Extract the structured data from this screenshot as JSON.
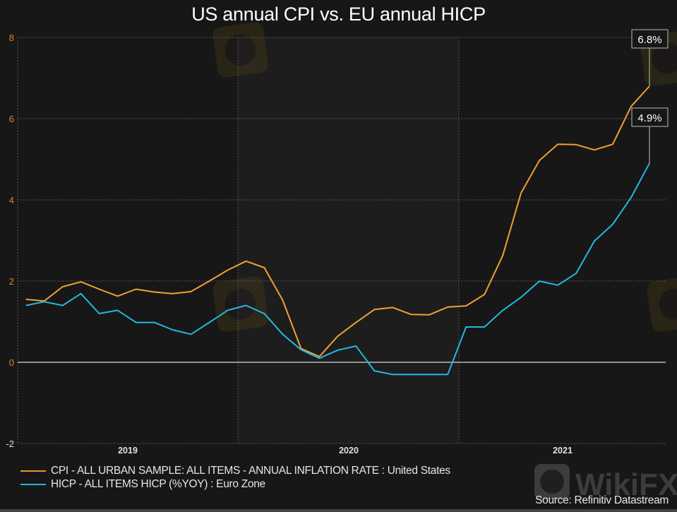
{
  "chart_data": {
    "type": "line",
    "title": "US annual CPI vs. EU annual HICP",
    "xlabel": "",
    "ylabel": "",
    "ylim": [
      -2,
      8
    ],
    "yticks": [
      "8",
      "6",
      "4",
      "2",
      "0",
      "-2"
    ],
    "ytick_values": [
      8,
      6,
      4,
      2,
      0,
      -2
    ],
    "xticks": [
      "2019",
      "2020",
      "2021"
    ],
    "grid": true,
    "legend_position": "bottom-left",
    "points_per_series": 35,
    "series": [
      {
        "name": "CPI - ALL URBAN SAMPLE: ALL ITEMS - ANNUAL INFLATION RATE : United States",
        "color": "#f0a030",
        "values": [
          1.55,
          1.51,
          1.86,
          1.98,
          1.8,
          1.63,
          1.8,
          1.73,
          1.69,
          1.74,
          2.0,
          2.27,
          2.49,
          2.33,
          1.53,
          0.34,
          0.14,
          0.64,
          0.98,
          1.3,
          1.35,
          1.18,
          1.17,
          1.36,
          1.39,
          1.67,
          2.63,
          4.17,
          4.97,
          5.37,
          5.36,
          5.23,
          5.37,
          6.3,
          6.8
        ],
        "end_label": "6.8%"
      },
      {
        "name": "HICP - ALL ITEMS HICP (%YOY) : Euro Zone",
        "color": "#22b8e0",
        "values": [
          1.4,
          1.49,
          1.4,
          1.69,
          1.2,
          1.28,
          0.98,
          0.98,
          0.8,
          0.69,
          0.98,
          1.28,
          1.4,
          1.2,
          0.69,
          0.31,
          0.1,
          0.3,
          0.4,
          -0.21,
          -0.3,
          -0.3,
          -0.3,
          -0.3,
          0.87,
          0.87,
          1.28,
          1.6,
          2.0,
          1.9,
          2.19,
          2.99,
          3.4,
          4.06,
          4.9
        ],
        "end_label": "4.9%"
      }
    ],
    "annotations": [
      "6.8%",
      "4.9%"
    ]
  },
  "source": "Source: Refinitiv Datastream",
  "watermark": "WikiFX",
  "colors": {
    "background": "#171717",
    "band": "#1d1d1d",
    "tick_label": "#e8821e",
    "grid": "#555555"
  }
}
